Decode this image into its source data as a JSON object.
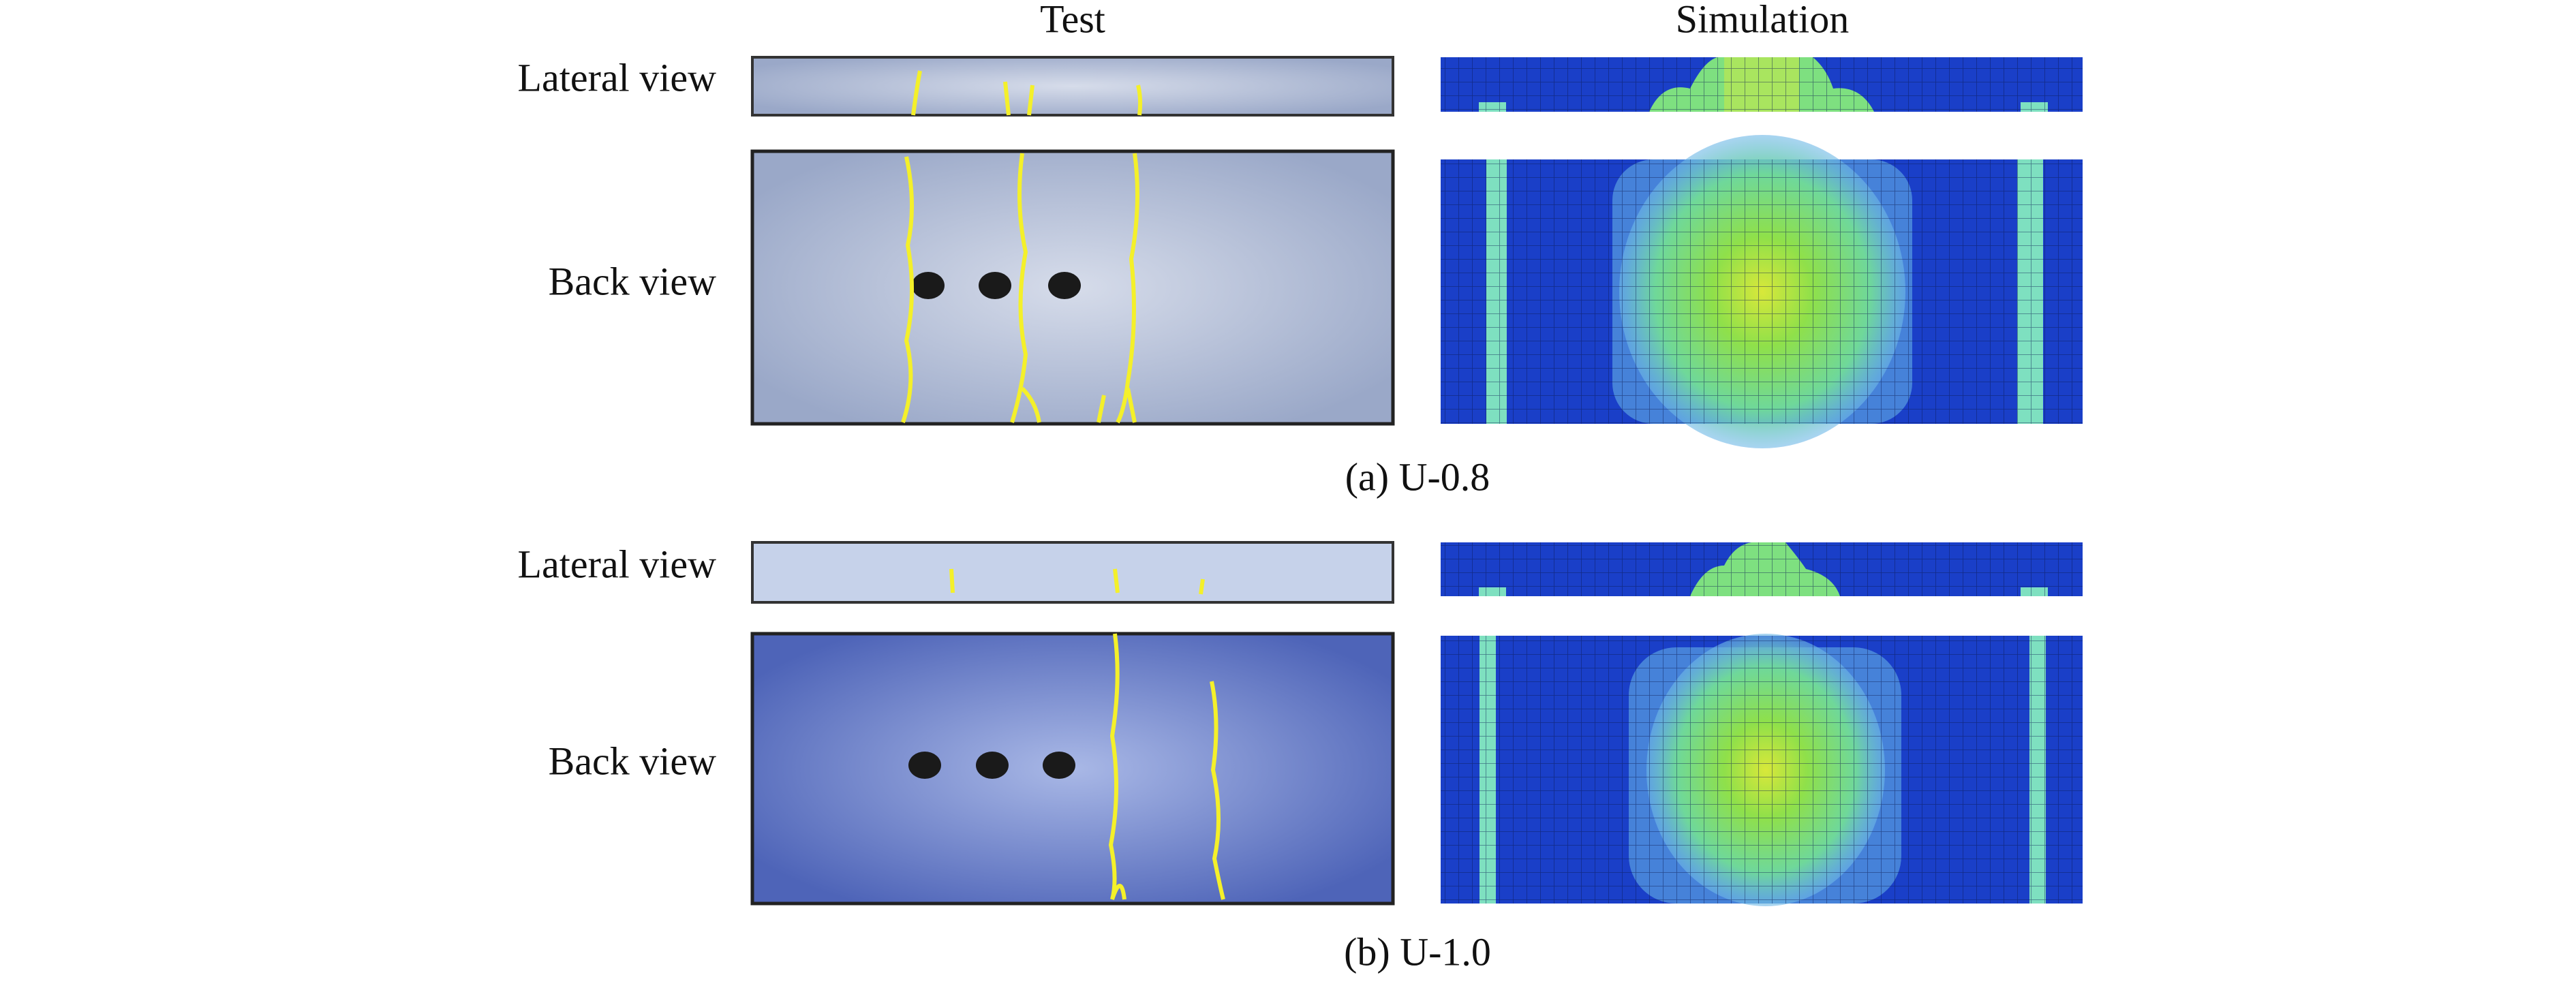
{
  "header": {
    "columns": [
      "Test",
      "Simulation"
    ]
  },
  "panels": [
    {
      "rows": [
        "Lateral view",
        "Back view"
      ],
      "caption": "(a) U-0.8"
    },
    {
      "rows": [
        "Lateral view",
        "Back view"
      ],
      "caption": "(b) U-1.0"
    }
  ]
}
